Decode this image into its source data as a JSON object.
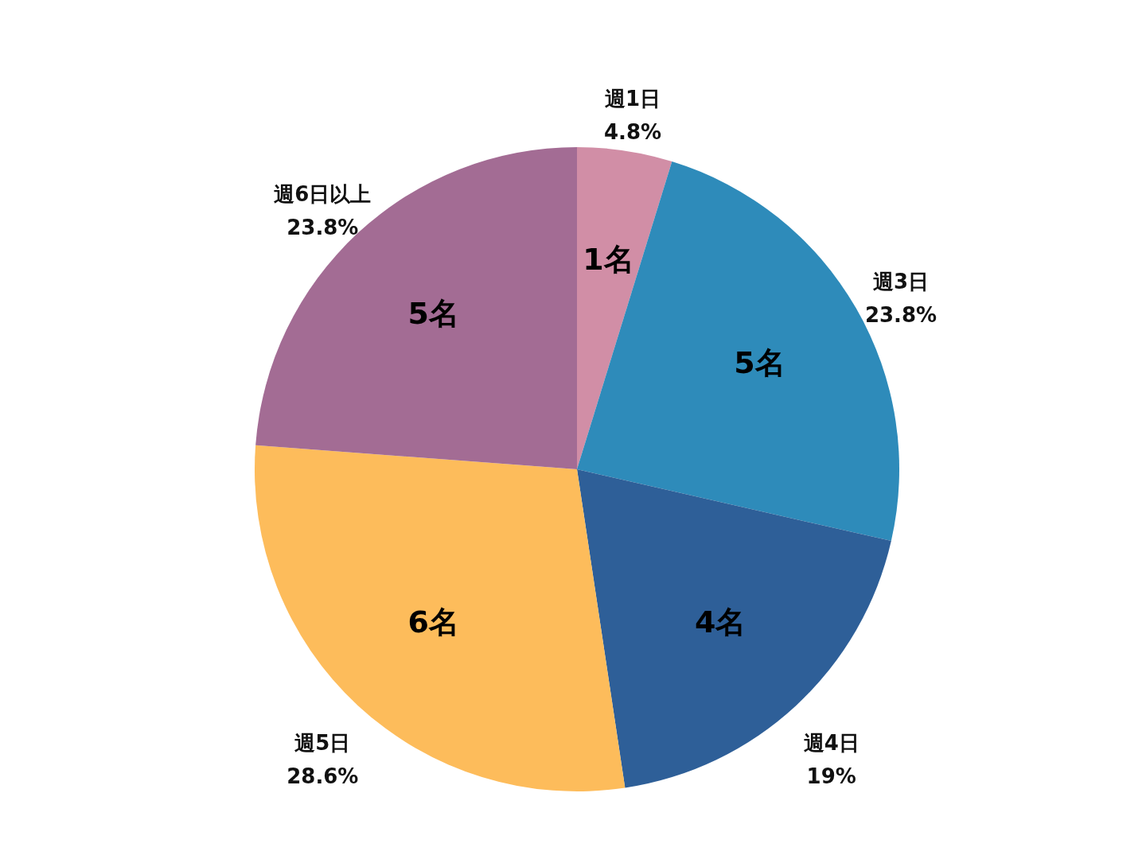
{
  "chart_data": {
    "type": "pie",
    "categories": [
      "週1日",
      "週3日",
      "週4日",
      "週5日",
      "週6日以上"
    ],
    "values": [
      1,
      5,
      4,
      6,
      5
    ],
    "value_labels": [
      "1名",
      "5名",
      "4名",
      "6名",
      "5名"
    ],
    "colors": [
      "#d18ea6",
      "#2e8bba",
      "#2e5f98",
      "#fdbc5b",
      "#a36c94"
    ],
    "annotations": [
      "4.8%",
      "23.8%",
      "19%",
      "28.6%",
      "23.8%"
    ]
  }
}
